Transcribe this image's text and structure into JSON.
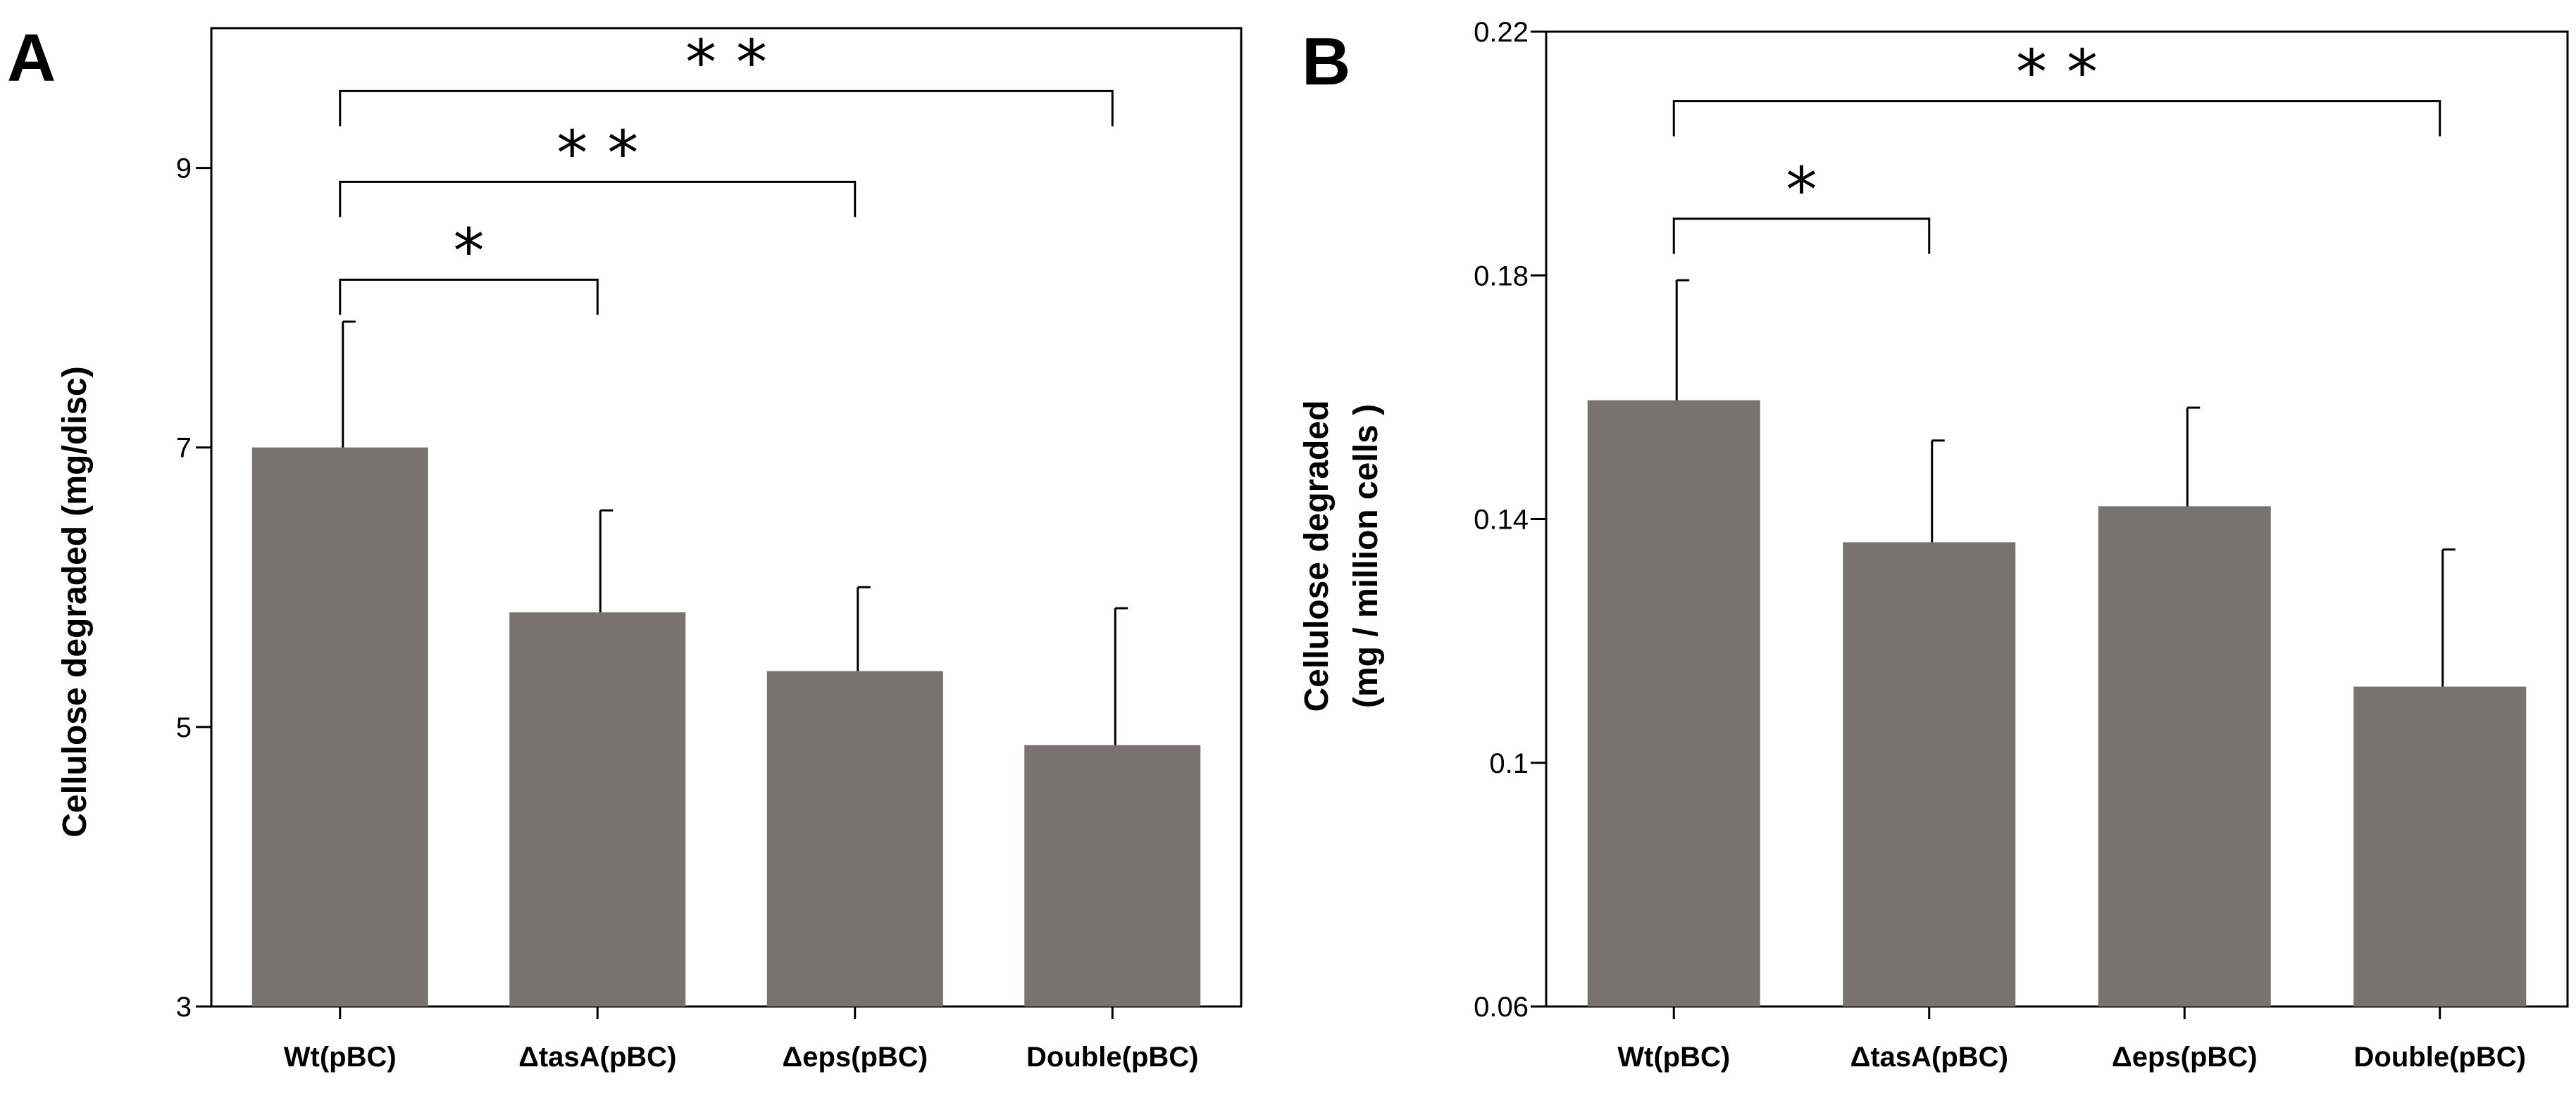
{
  "chart_data": [
    {
      "type": "bar",
      "panel": "A",
      "title": "",
      "xlabel": "",
      "ylabel": "Cellulose degraded (mg/disc)",
      "ylim": [
        3,
        10
      ],
      "yticks": [
        3,
        5,
        7,
        9
      ],
      "ytick_labels": [
        "3",
        "5",
        "7",
        "9"
      ],
      "categories": [
        "Wt(pBC)",
        "ΔtasA(pBC)",
        "Δeps(pBC)",
        "Double(pBC)"
      ],
      "values": [
        7.0,
        5.82,
        5.4,
        4.87
      ],
      "errors": [
        0.9,
        0.73,
        0.6,
        0.98
      ],
      "bar_color": "#787370",
      "significance": [
        {
          "from": 0,
          "to": 1,
          "label": "*",
          "y": 8.2
        },
        {
          "from": 0,
          "to": 2,
          "label": "**",
          "y": 8.9
        },
        {
          "from": 0,
          "to": 3,
          "label": "**",
          "y": 9.55
        }
      ]
    },
    {
      "type": "bar",
      "panel": "B",
      "title": "",
      "xlabel": "",
      "ylabel": [
        "Cellulose degraded",
        "(mg / million cells )"
      ],
      "ylim": [
        0.06,
        0.22
      ],
      "yticks": [
        0.06,
        0.1,
        0.14,
        0.18,
        0.22
      ],
      "ytick_labels": [
        "0.06",
        "0.1",
        "0.14",
        "0.18",
        "0.22"
      ],
      "categories": [
        "Wt(pBC)",
        "ΔtasA(pBC)",
        "Δeps(pBC)",
        "Double(pBC)"
      ],
      "values": [
        0.1595,
        0.1362,
        0.1421,
        0.1125
      ],
      "errors": [
        0.0197,
        0.0167,
        0.0162,
        0.0225
      ],
      "bar_color": "#787370",
      "significance": [
        {
          "from": 0,
          "to": 1,
          "label": "*",
          "y": 0.1893
        },
        {
          "from": 0,
          "to": 3,
          "label": "**",
          "y": 0.2086
        }
      ]
    }
  ]
}
